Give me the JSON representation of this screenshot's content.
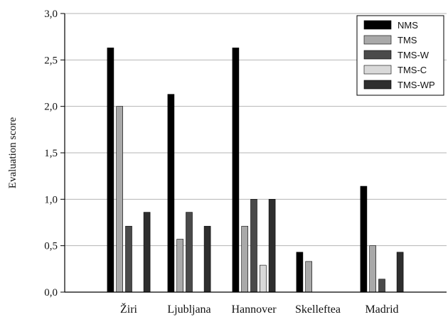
{
  "chart_data": {
    "type": "bar",
    "title": "",
    "xlabel": "",
    "ylabel": "Evaluation score",
    "ylim": [
      0,
      3
    ],
    "yticks": [
      "0,0",
      "0,5",
      "1,0",
      "1,5",
      "2,0",
      "2,5",
      "3,0"
    ],
    "categories": [
      "Žiri",
      "Ljubljana",
      "Hannover",
      "Skelleftea",
      "Madrid"
    ],
    "grid": true,
    "legend_position": "top-right",
    "series": [
      {
        "name": "NMS",
        "color": "#000000",
        "values": [
          2.63,
          2.13,
          2.63,
          0.43,
          1.14
        ]
      },
      {
        "name": "TMS",
        "color": "#a9a9a9",
        "values": [
          2.0,
          0.57,
          0.71,
          0.33,
          0.5
        ]
      },
      {
        "name": "TMS-W",
        "color": "#4a4a4a",
        "values": [
          0.71,
          0.86,
          1.0,
          0.0,
          0.14
        ]
      },
      {
        "name": "TMS-C",
        "color": "#d9d9d9",
        "values": [
          0.0,
          0.0,
          0.29,
          0.0,
          0.0
        ]
      },
      {
        "name": "TMS-WP",
        "color": "#2e2e2e",
        "values": [
          0.86,
          0.71,
          1.0,
          0.0,
          0.43
        ]
      }
    ]
  }
}
